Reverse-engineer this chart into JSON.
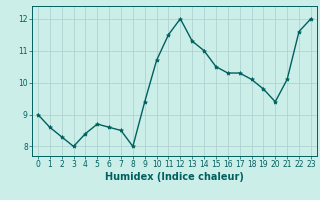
{
  "x": [
    0,
    1,
    2,
    3,
    4,
    5,
    6,
    7,
    8,
    9,
    10,
    11,
    12,
    13,
    14,
    15,
    16,
    17,
    18,
    19,
    20,
    21,
    22,
    23
  ],
  "y": [
    9.0,
    8.6,
    8.3,
    8.0,
    8.4,
    8.7,
    8.6,
    8.5,
    8.0,
    9.4,
    10.7,
    11.5,
    12.0,
    11.3,
    11.0,
    10.5,
    10.3,
    10.3,
    10.1,
    9.8,
    9.4,
    10.1,
    11.6,
    12.0
  ],
  "line_color": "#006060",
  "marker": "*",
  "marker_size": 3,
  "bg_color": "#cceee8",
  "grid_color": "#aacccc",
  "xlabel": "Humidex (Indice chaleur)",
  "ylim": [
    7.7,
    12.4
  ],
  "xlim": [
    -0.5,
    23.5
  ],
  "yticks": [
    8,
    9,
    10,
    11,
    12
  ],
  "xticks": [
    0,
    1,
    2,
    3,
    4,
    5,
    6,
    7,
    8,
    9,
    10,
    11,
    12,
    13,
    14,
    15,
    16,
    17,
    18,
    19,
    20,
    21,
    22,
    23
  ],
  "tick_label_fontsize": 5.5,
  "xlabel_fontsize": 7.0,
  "tick_color": "#006060",
  "label_color": "#006060",
  "spine_color": "#006060",
  "linewidth": 1.0
}
